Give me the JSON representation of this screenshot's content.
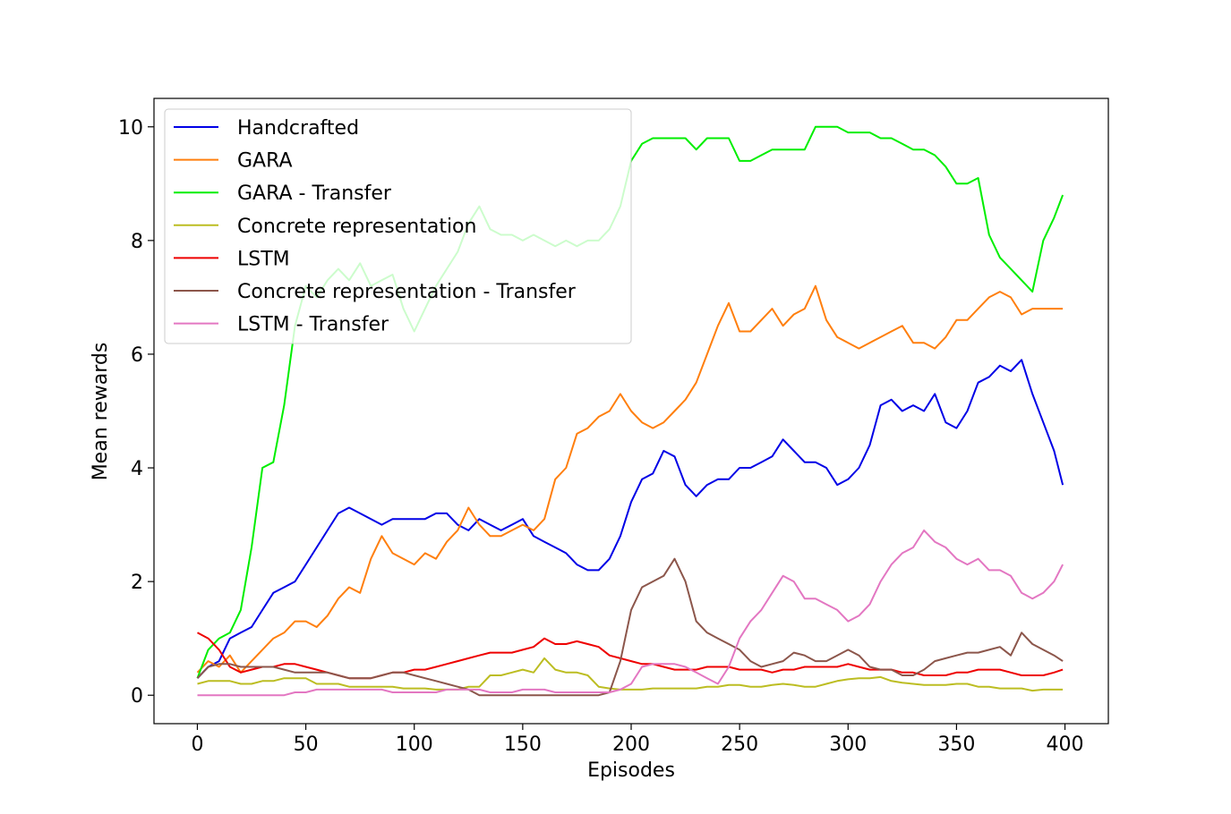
{
  "chart_data": {
    "type": "line",
    "title": "",
    "xlabel": "Episodes",
    "ylabel": "Mean rewards",
    "xlim": [
      -20,
      420
    ],
    "ylim": [
      -0.5,
      10.5
    ],
    "xticks": [
      0,
      50,
      100,
      150,
      200,
      250,
      300,
      350,
      400
    ],
    "yticks": [
      0,
      2,
      4,
      6,
      8,
      10
    ],
    "grid": false,
    "legend_position": "upper-left",
    "series": [
      {
        "name": "Handcrafted",
        "color": "#0000e6",
        "x": [
          0,
          5,
          10,
          15,
          20,
          25,
          30,
          35,
          40,
          45,
          50,
          55,
          60,
          65,
          70,
          75,
          80,
          85,
          90,
          95,
          100,
          105,
          110,
          115,
          120,
          125,
          130,
          135,
          140,
          145,
          150,
          155,
          160,
          165,
          170,
          175,
          180,
          185,
          190,
          195,
          200,
          205,
          210,
          215,
          220,
          225,
          230,
          235,
          240,
          245,
          250,
          255,
          260,
          265,
          270,
          275,
          280,
          285,
          290,
          295,
          300,
          305,
          310,
          315,
          320,
          325,
          330,
          335,
          340,
          345,
          350,
          355,
          360,
          365,
          370,
          375,
          380,
          385,
          390,
          395,
          399
        ],
        "y": [
          0.3,
          0.5,
          0.6,
          1.0,
          1.1,
          1.2,
          1.5,
          1.8,
          1.9,
          2.0,
          2.3,
          2.6,
          2.9,
          3.2,
          3.3,
          3.2,
          3.1,
          3.0,
          3.1,
          3.1,
          3.1,
          3.1,
          3.2,
          3.2,
          3.0,
          2.9,
          3.1,
          3.0,
          2.9,
          3.0,
          3.1,
          2.8,
          2.7,
          2.6,
          2.5,
          2.3,
          2.2,
          2.2,
          2.4,
          2.8,
          3.4,
          3.8,
          3.9,
          4.3,
          4.2,
          3.7,
          3.5,
          3.7,
          3.8,
          3.8,
          4.0,
          4.0,
          4.1,
          4.2,
          4.5,
          4.3,
          4.1,
          4.1,
          4.0,
          3.7,
          3.8,
          4.0,
          4.4,
          5.1,
          5.2,
          5.0,
          5.1,
          5.0,
          5.3,
          4.8,
          4.7,
          5.0,
          5.5,
          5.6,
          5.8,
          5.7,
          5.9,
          5.3,
          4.8,
          4.3,
          3.7
        ]
      },
      {
        "name": "GARA",
        "color": "#ff7f0e",
        "x": [
          0,
          5,
          10,
          15,
          20,
          25,
          30,
          35,
          40,
          45,
          50,
          55,
          60,
          65,
          70,
          75,
          80,
          85,
          90,
          95,
          100,
          105,
          110,
          115,
          120,
          125,
          130,
          135,
          140,
          145,
          150,
          155,
          160,
          165,
          170,
          175,
          180,
          185,
          190,
          195,
          200,
          205,
          210,
          215,
          220,
          225,
          230,
          235,
          240,
          245,
          250,
          255,
          260,
          265,
          270,
          275,
          280,
          285,
          290,
          295,
          300,
          305,
          310,
          315,
          320,
          325,
          330,
          335,
          340,
          345,
          350,
          355,
          360,
          365,
          370,
          375,
          380,
          385,
          390,
          395,
          399
        ],
        "y": [
          0.4,
          0.6,
          0.5,
          0.7,
          0.4,
          0.6,
          0.8,
          1.0,
          1.1,
          1.3,
          1.3,
          1.2,
          1.4,
          1.7,
          1.9,
          1.8,
          2.4,
          2.8,
          2.5,
          2.4,
          2.3,
          2.5,
          2.4,
          2.7,
          2.9,
          3.3,
          3.0,
          2.8,
          2.8,
          2.9,
          3.0,
          2.9,
          3.1,
          3.8,
          4.0,
          4.6,
          4.7,
          4.9,
          5.0,
          5.3,
          5.0,
          4.8,
          4.7,
          4.8,
          5.0,
          5.2,
          5.5,
          6.0,
          6.5,
          6.9,
          6.4,
          6.4,
          6.6,
          6.8,
          6.5,
          6.7,
          6.8,
          7.2,
          6.6,
          6.3,
          6.2,
          6.1,
          6.2,
          6.3,
          6.4,
          6.5,
          6.2,
          6.2,
          6.1,
          6.3,
          6.6,
          6.6,
          6.8,
          7.0,
          7.1,
          7.0,
          6.7,
          6.8,
          6.8,
          6.8,
          6.8
        ]
      },
      {
        "name": "GARA - Transfer",
        "color": "#00ee00",
        "x": [
          0,
          5,
          10,
          15,
          20,
          25,
          30,
          35,
          40,
          45,
          50,
          55,
          60,
          65,
          70,
          75,
          80,
          85,
          90,
          95,
          100,
          105,
          110,
          115,
          120,
          125,
          130,
          135,
          140,
          145,
          150,
          155,
          160,
          165,
          170,
          175,
          180,
          185,
          190,
          195,
          200,
          205,
          210,
          215,
          220,
          225,
          230,
          235,
          240,
          245,
          250,
          255,
          260,
          265,
          270,
          275,
          280,
          285,
          290,
          295,
          300,
          305,
          310,
          315,
          320,
          325,
          330,
          335,
          340,
          345,
          350,
          355,
          360,
          365,
          370,
          375,
          380,
          385,
          390,
          395,
          399
        ],
        "y": [
          0.3,
          0.8,
          1.0,
          1.1,
          1.5,
          2.6,
          4.0,
          4.1,
          5.1,
          6.5,
          7.2,
          7.0,
          7.3,
          7.5,
          7.3,
          7.6,
          7.2,
          7.3,
          7.4,
          6.8,
          6.4,
          6.8,
          7.2,
          7.5,
          7.8,
          8.3,
          8.6,
          8.2,
          8.1,
          8.1,
          8.0,
          8.1,
          8.0,
          7.9,
          8.0,
          7.9,
          8.0,
          8.0,
          8.2,
          8.6,
          9.4,
          9.7,
          9.8,
          9.8,
          9.8,
          9.8,
          9.6,
          9.8,
          9.8,
          9.8,
          9.4,
          9.4,
          9.5,
          9.6,
          9.6,
          9.6,
          9.6,
          10.0,
          10.0,
          10.0,
          9.9,
          9.9,
          9.9,
          9.8,
          9.8,
          9.7,
          9.6,
          9.6,
          9.5,
          9.3,
          9.0,
          9.0,
          9.1,
          8.1,
          7.7,
          7.5,
          7.3,
          7.1,
          8.0,
          8.4,
          8.8
        ]
      },
      {
        "name": "Concrete representation",
        "color": "#bcbd22",
        "x": [
          0,
          5,
          10,
          15,
          20,
          25,
          30,
          35,
          40,
          45,
          50,
          55,
          60,
          65,
          70,
          75,
          80,
          85,
          90,
          95,
          100,
          105,
          110,
          115,
          120,
          125,
          130,
          135,
          140,
          145,
          150,
          155,
          160,
          165,
          170,
          175,
          180,
          185,
          190,
          195,
          200,
          205,
          210,
          215,
          220,
          225,
          230,
          235,
          240,
          245,
          250,
          255,
          260,
          265,
          270,
          275,
          280,
          285,
          290,
          295,
          300,
          305,
          310,
          315,
          320,
          325,
          330,
          335,
          340,
          345,
          350,
          355,
          360,
          365,
          370,
          375,
          380,
          385,
          390,
          395,
          399
        ],
        "y": [
          0.2,
          0.25,
          0.25,
          0.25,
          0.2,
          0.2,
          0.25,
          0.25,
          0.3,
          0.3,
          0.3,
          0.2,
          0.2,
          0.2,
          0.15,
          0.15,
          0.15,
          0.15,
          0.15,
          0.12,
          0.12,
          0.12,
          0.1,
          0.1,
          0.1,
          0.15,
          0.15,
          0.35,
          0.35,
          0.4,
          0.45,
          0.4,
          0.65,
          0.45,
          0.4,
          0.4,
          0.35,
          0.15,
          0.12,
          0.1,
          0.1,
          0.1,
          0.12,
          0.12,
          0.12,
          0.12,
          0.12,
          0.15,
          0.15,
          0.18,
          0.18,
          0.15,
          0.15,
          0.18,
          0.2,
          0.18,
          0.15,
          0.15,
          0.2,
          0.25,
          0.28,
          0.3,
          0.3,
          0.32,
          0.25,
          0.22,
          0.2,
          0.18,
          0.18,
          0.18,
          0.2,
          0.2,
          0.15,
          0.15,
          0.12,
          0.12,
          0.12,
          0.08,
          0.1,
          0.1,
          0.1
        ]
      },
      {
        "name": "LSTM",
        "color": "#ee0000",
        "x": [
          0,
          5,
          10,
          15,
          20,
          25,
          30,
          35,
          40,
          45,
          50,
          55,
          60,
          65,
          70,
          75,
          80,
          85,
          90,
          95,
          100,
          105,
          110,
          115,
          120,
          125,
          130,
          135,
          140,
          145,
          150,
          155,
          160,
          165,
          170,
          175,
          180,
          185,
          190,
          195,
          200,
          205,
          210,
          215,
          220,
          225,
          230,
          235,
          240,
          245,
          250,
          255,
          260,
          265,
          270,
          275,
          280,
          285,
          290,
          295,
          300,
          305,
          310,
          315,
          320,
          325,
          330,
          335,
          340,
          345,
          350,
          355,
          360,
          365,
          370,
          375,
          380,
          385,
          390,
          395,
          399
        ],
        "y": [
          1.1,
          1.0,
          0.8,
          0.5,
          0.4,
          0.45,
          0.5,
          0.5,
          0.55,
          0.55,
          0.5,
          0.45,
          0.4,
          0.35,
          0.3,
          0.3,
          0.3,
          0.35,
          0.4,
          0.4,
          0.45,
          0.45,
          0.5,
          0.55,
          0.6,
          0.65,
          0.7,
          0.75,
          0.75,
          0.75,
          0.8,
          0.85,
          1.0,
          0.9,
          0.9,
          0.95,
          0.9,
          0.85,
          0.7,
          0.65,
          0.6,
          0.55,
          0.55,
          0.5,
          0.45,
          0.45,
          0.45,
          0.5,
          0.5,
          0.5,
          0.45,
          0.45,
          0.45,
          0.4,
          0.45,
          0.45,
          0.5,
          0.5,
          0.5,
          0.5,
          0.55,
          0.5,
          0.45,
          0.45,
          0.45,
          0.4,
          0.4,
          0.35,
          0.35,
          0.35,
          0.4,
          0.4,
          0.45,
          0.45,
          0.45,
          0.4,
          0.35,
          0.35,
          0.35,
          0.4,
          0.45
        ]
      },
      {
        "name": "Concrete representation - Transfer",
        "color": "#8c564b",
        "x": [
          0,
          5,
          10,
          15,
          20,
          25,
          30,
          35,
          40,
          45,
          50,
          55,
          60,
          65,
          70,
          75,
          80,
          85,
          90,
          95,
          100,
          105,
          110,
          115,
          120,
          125,
          130,
          135,
          140,
          145,
          150,
          155,
          160,
          165,
          170,
          175,
          180,
          185,
          190,
          195,
          200,
          205,
          210,
          215,
          220,
          225,
          230,
          235,
          240,
          245,
          250,
          255,
          260,
          265,
          270,
          275,
          280,
          285,
          290,
          295,
          300,
          305,
          310,
          315,
          320,
          325,
          330,
          335,
          340,
          345,
          350,
          355,
          360,
          365,
          370,
          375,
          380,
          385,
          390,
          395,
          399
        ],
        "y": [
          0.3,
          0.5,
          0.55,
          0.55,
          0.5,
          0.5,
          0.5,
          0.5,
          0.45,
          0.4,
          0.4,
          0.4,
          0.4,
          0.35,
          0.3,
          0.3,
          0.3,
          0.35,
          0.4,
          0.4,
          0.35,
          0.3,
          0.25,
          0.2,
          0.15,
          0.1,
          0.0,
          0.0,
          0.0,
          0.0,
          0.0,
          0.0,
          0.0,
          0.0,
          0.0,
          0.0,
          0.0,
          0.0,
          0.05,
          0.6,
          1.5,
          1.9,
          2.0,
          2.1,
          2.4,
          2.0,
          1.3,
          1.1,
          1.0,
          0.9,
          0.8,
          0.6,
          0.5,
          0.55,
          0.6,
          0.75,
          0.7,
          0.6,
          0.6,
          0.7,
          0.8,
          0.7,
          0.5,
          0.45,
          0.45,
          0.35,
          0.35,
          0.45,
          0.6,
          0.65,
          0.7,
          0.75,
          0.75,
          0.8,
          0.85,
          0.7,
          1.1,
          0.9,
          0.8,
          0.7,
          0.6
        ]
      },
      {
        "name": "LSTM - Transfer",
        "color": "#e377c2",
        "x": [
          0,
          5,
          10,
          15,
          20,
          25,
          30,
          35,
          40,
          45,
          50,
          55,
          60,
          65,
          70,
          75,
          80,
          85,
          90,
          95,
          100,
          105,
          110,
          115,
          120,
          125,
          130,
          135,
          140,
          145,
          150,
          155,
          160,
          165,
          170,
          175,
          180,
          185,
          190,
          195,
          200,
          205,
          210,
          215,
          220,
          225,
          230,
          235,
          240,
          245,
          250,
          255,
          260,
          265,
          270,
          275,
          280,
          285,
          290,
          295,
          300,
          305,
          310,
          315,
          320,
          325,
          330,
          335,
          340,
          345,
          350,
          355,
          360,
          365,
          370,
          375,
          380,
          385,
          390,
          395,
          399
        ],
        "y": [
          0.0,
          0.0,
          0.0,
          0.0,
          0.0,
          0.0,
          0.0,
          0.0,
          0.0,
          0.05,
          0.05,
          0.1,
          0.1,
          0.1,
          0.1,
          0.1,
          0.1,
          0.1,
          0.05,
          0.05,
          0.05,
          0.05,
          0.05,
          0.1,
          0.1,
          0.1,
          0.1,
          0.05,
          0.05,
          0.05,
          0.1,
          0.1,
          0.1,
          0.05,
          0.05,
          0.05,
          0.05,
          0.05,
          0.05,
          0.1,
          0.2,
          0.5,
          0.55,
          0.55,
          0.55,
          0.5,
          0.4,
          0.3,
          0.2,
          0.5,
          1.0,
          1.3,
          1.5,
          1.8,
          2.1,
          2.0,
          1.7,
          1.7,
          1.6,
          1.5,
          1.3,
          1.4,
          1.6,
          2.0,
          2.3,
          2.5,
          2.6,
          2.9,
          2.7,
          2.6,
          2.4,
          2.3,
          2.4,
          2.2,
          2.2,
          2.1,
          1.8,
          1.7,
          1.8,
          2.0,
          2.3
        ]
      }
    ]
  }
}
